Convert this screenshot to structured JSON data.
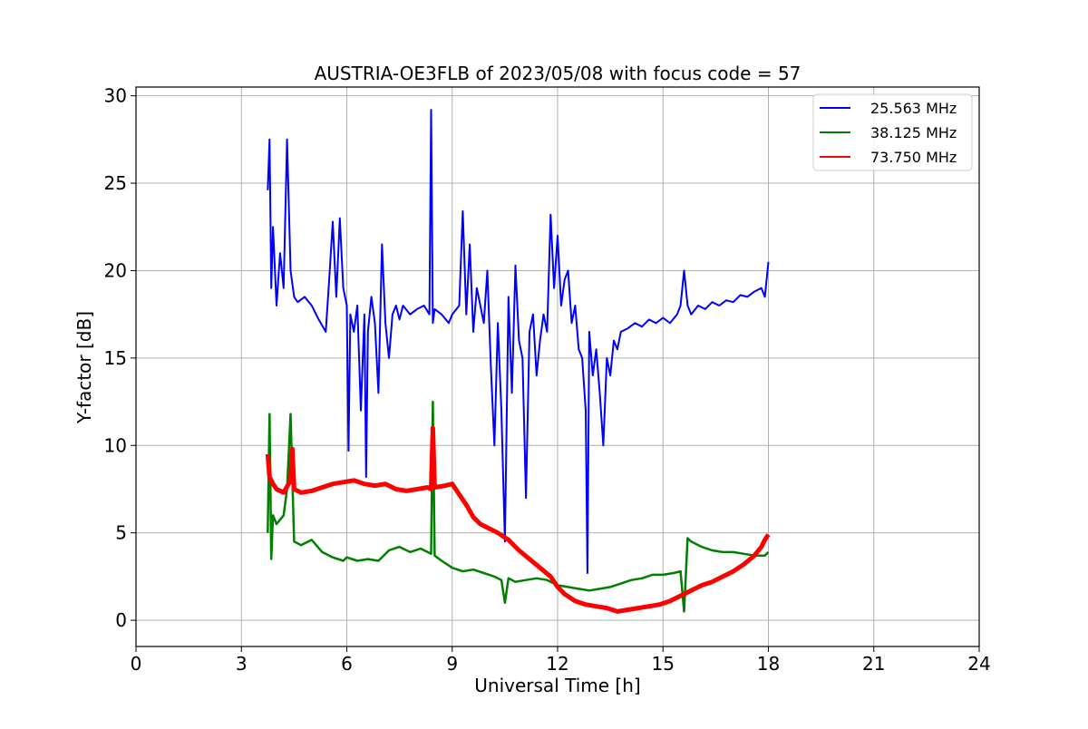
{
  "chart_data": {
    "type": "line",
    "title": "AUSTRIA-OE3FLB of 2023/05/08 with focus code = 57",
    "xlabel": "Universal Time [h]",
    "ylabel": "Y-factor [dB]",
    "xlim": [
      0,
      24
    ],
    "ylim": [
      -1.5,
      30.5
    ],
    "xticks": [
      0,
      3,
      6,
      9,
      12,
      15,
      18,
      21,
      24
    ],
    "yticks": [
      0,
      5,
      10,
      15,
      20,
      25,
      30
    ],
    "grid": true,
    "legend_position": "top-right",
    "series": [
      {
        "name": "25.563 MHz",
        "color": "#0000ff",
        "x": [
          3.75,
          3.8,
          3.85,
          3.9,
          4.0,
          4.1,
          4.2,
          4.3,
          4.4,
          4.5,
          4.6,
          4.8,
          5.0,
          5.2,
          5.4,
          5.5,
          5.6,
          5.7,
          5.8,
          5.9,
          6.0,
          6.05,
          6.1,
          6.2,
          6.3,
          6.4,
          6.5,
          6.55,
          6.6,
          6.7,
          6.8,
          6.9,
          7.0,
          7.1,
          7.2,
          7.3,
          7.4,
          7.5,
          7.6,
          7.8,
          8.0,
          8.2,
          8.35,
          8.4,
          8.45,
          8.5,
          8.7,
          8.9,
          9.0,
          9.2,
          9.3,
          9.4,
          9.5,
          9.6,
          9.7,
          9.8,
          9.9,
          10.0,
          10.1,
          10.2,
          10.3,
          10.4,
          10.5,
          10.6,
          10.7,
          10.8,
          10.9,
          11.0,
          11.1,
          11.2,
          11.3,
          11.4,
          11.5,
          11.6,
          11.7,
          11.8,
          11.9,
          12.0,
          12.1,
          12.2,
          12.3,
          12.4,
          12.5,
          12.6,
          12.7,
          12.8,
          12.85,
          12.9,
          13.0,
          13.1,
          13.2,
          13.3,
          13.4,
          13.5,
          13.6,
          13.7,
          13.8,
          14.0,
          14.2,
          14.4,
          14.6,
          14.8,
          15.0,
          15.2,
          15.4,
          15.5,
          15.6,
          15.7,
          15.8,
          16.0,
          16.2,
          16.4,
          16.6,
          16.8,
          17.0,
          17.2,
          17.4,
          17.6,
          17.8,
          17.9,
          18.0
        ],
        "y": [
          24.6,
          27.5,
          19.0,
          22.5,
          18.0,
          21.0,
          19.0,
          27.5,
          20.0,
          18.5,
          18.2,
          18.5,
          18.0,
          17.2,
          16.5,
          19.5,
          22.8,
          18.5,
          23.0,
          19.0,
          18.0,
          9.7,
          17.5,
          16.5,
          18.0,
          12.0,
          17.5,
          8.2,
          16.5,
          18.5,
          17.0,
          13.0,
          21.5,
          17.0,
          15.0,
          17.5,
          18.0,
          17.2,
          18.0,
          17.5,
          17.8,
          18.0,
          17.5,
          29.2,
          17.0,
          17.8,
          17.5,
          17.0,
          17.5,
          18.0,
          23.4,
          17.5,
          21.5,
          16.5,
          19.0,
          18.0,
          17.0,
          20.0,
          14.5,
          10.0,
          17.0,
          12.0,
          4.5,
          18.5,
          13.0,
          20.3,
          16.0,
          15.0,
          7.0,
          16.5,
          17.5,
          14.0,
          16.0,
          17.5,
          16.5,
          23.2,
          19.0,
          22.0,
          18.0,
          19.5,
          20.0,
          17.0,
          18.0,
          15.5,
          15.0,
          12.0,
          2.7,
          16.5,
          14.0,
          15.5,
          13.0,
          10.0,
          15.0,
          14.0,
          16.0,
          15.5,
          16.5,
          16.7,
          17.0,
          16.8,
          17.2,
          17.0,
          17.3,
          17.0,
          17.5,
          18.0,
          20.0,
          18.0,
          17.5,
          18.0,
          17.8,
          18.2,
          18.0,
          18.3,
          18.2,
          18.6,
          18.5,
          18.8,
          19.0,
          18.5,
          20.5
        ]
      },
      {
        "name": "38.125 MHz",
        "color": "#008000",
        "x": [
          3.75,
          3.8,
          3.85,
          3.9,
          4.0,
          4.2,
          4.3,
          4.4,
          4.5,
          4.7,
          5.0,
          5.3,
          5.6,
          5.9,
          6.0,
          6.3,
          6.6,
          6.9,
          7.2,
          7.5,
          7.8,
          8.1,
          8.4,
          8.45,
          8.5,
          8.7,
          9.0,
          9.3,
          9.6,
          9.9,
          10.2,
          10.4,
          10.5,
          10.6,
          10.8,
          11.1,
          11.4,
          11.7,
          12.0,
          12.3,
          12.6,
          12.9,
          13.2,
          13.5,
          13.8,
          14.1,
          14.4,
          14.7,
          15.0,
          15.3,
          15.5,
          15.6,
          15.7,
          15.8,
          16.1,
          16.4,
          16.7,
          17.0,
          17.3,
          17.6,
          17.9,
          18.0
        ],
        "y": [
          5.0,
          11.8,
          3.5,
          6.0,
          5.5,
          6.0,
          7.5,
          11.8,
          4.5,
          4.3,
          4.6,
          3.9,
          3.6,
          3.4,
          3.6,
          3.4,
          3.5,
          3.4,
          4.0,
          4.2,
          3.9,
          4.1,
          3.8,
          12.5,
          3.7,
          3.4,
          3.0,
          2.8,
          2.9,
          2.7,
          2.5,
          2.3,
          1.0,
          2.4,
          2.2,
          2.3,
          2.4,
          2.3,
          2.0,
          1.9,
          1.8,
          1.7,
          1.8,
          1.9,
          2.1,
          2.3,
          2.4,
          2.6,
          2.6,
          2.7,
          2.8,
          0.5,
          4.7,
          4.5,
          4.2,
          4.0,
          3.9,
          3.9,
          3.8,
          3.7,
          3.7,
          3.9
        ]
      },
      {
        "name": "73.750 MHz",
        "color": "#ff0000",
        "x": [
          3.75,
          3.8,
          3.9,
          4.0,
          4.2,
          4.4,
          4.45,
          4.5,
          4.7,
          5.0,
          5.3,
          5.6,
          5.9,
          6.2,
          6.5,
          6.8,
          7.1,
          7.4,
          7.7,
          8.0,
          8.3,
          8.4,
          8.45,
          8.5,
          8.8,
          9.0,
          9.2,
          9.4,
          9.6,
          9.8,
          10.0,
          10.3,
          10.6,
          10.9,
          11.2,
          11.5,
          11.8,
          12.0,
          12.2,
          12.5,
          12.8,
          13.1,
          13.4,
          13.7,
          14.0,
          14.3,
          14.6,
          14.9,
          15.2,
          15.5,
          15.8,
          16.1,
          16.4,
          16.7,
          17.0,
          17.3,
          17.6,
          17.8,
          17.9,
          18.0
        ],
        "y": [
          9.5,
          8.2,
          7.8,
          7.5,
          7.3,
          8.0,
          9.8,
          7.5,
          7.3,
          7.4,
          7.6,
          7.8,
          7.9,
          8.0,
          7.8,
          7.7,
          7.8,
          7.5,
          7.4,
          7.5,
          7.6,
          7.5,
          11.0,
          7.6,
          7.7,
          7.8,
          7.2,
          6.6,
          5.9,
          5.5,
          5.3,
          5.0,
          4.6,
          4.0,
          3.5,
          3.0,
          2.5,
          1.9,
          1.5,
          1.1,
          0.9,
          0.8,
          0.7,
          0.5,
          0.6,
          0.7,
          0.8,
          0.9,
          1.1,
          1.4,
          1.7,
          2.0,
          2.2,
          2.5,
          2.8,
          3.2,
          3.7,
          4.2,
          4.6,
          4.9
        ]
      }
    ]
  }
}
